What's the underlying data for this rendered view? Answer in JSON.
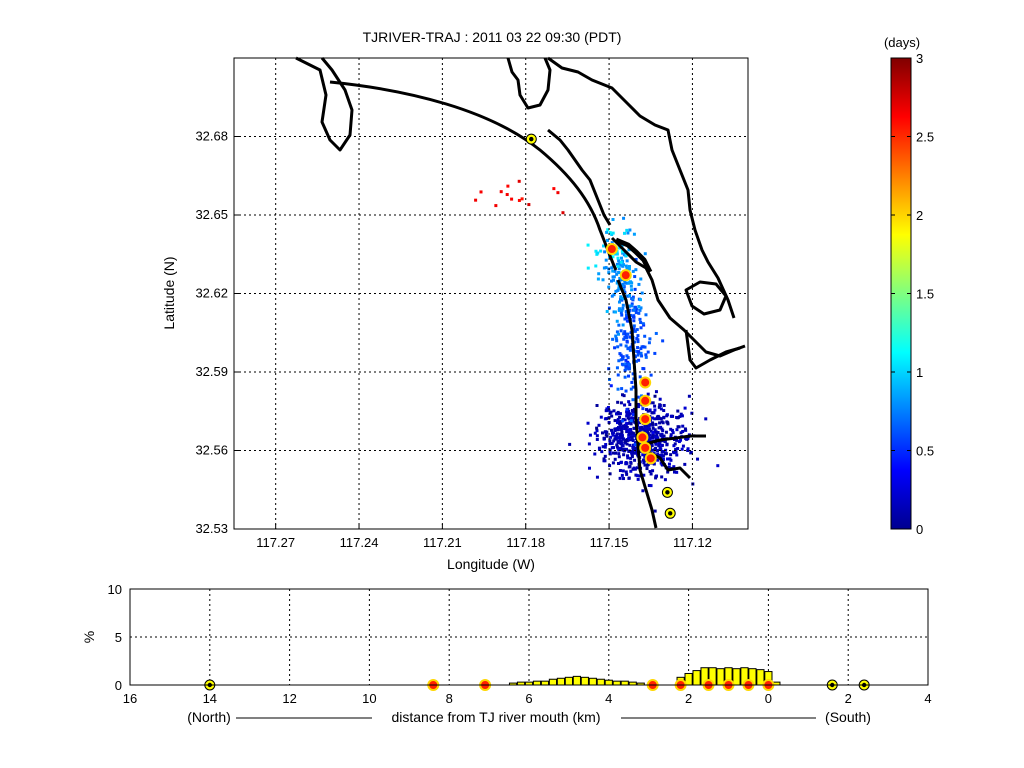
{
  "chart_data": [
    {
      "type": "scatter",
      "title": "TJRIVER-TRAJ : 2011 03 22 09:30 (PDT)",
      "xlabel": "Longitude (W)",
      "ylabel": "Latitude (N)",
      "xlim": [
        117.285,
        117.1
      ],
      "ylim": [
        32.53,
        32.71
      ],
      "x_ticks": [
        "117.27",
        "117.24",
        "117.21",
        "117.18",
        "117.15",
        "117.12"
      ],
      "x_tick_values": [
        117.27,
        117.24,
        117.21,
        117.18,
        117.15,
        117.12
      ],
      "y_ticks": [
        "32.53",
        "32.56",
        "32.59",
        "32.62",
        "32.65",
        "32.68"
      ],
      "y_tick_values": [
        32.53,
        32.56,
        32.59,
        32.62,
        32.65,
        32.68
      ],
      "grid": true,
      "colorbar": {
        "label": "(days)",
        "ticks": [
          "0",
          "0.5",
          "1",
          "1.5",
          "2",
          "2.5",
          "3"
        ],
        "range": [
          0,
          3
        ],
        "colormap": "jet"
      },
      "clusters": [
        {
          "lon": 117.138,
          "lat": 32.565,
          "age": 0.15,
          "spread_lon": 0.008,
          "spread_lat": 0.007,
          "count": 650
        },
        {
          "lon": 117.142,
          "lat": 32.6,
          "age": 0.6,
          "spread_lon": 0.003,
          "spread_lat": 0.012,
          "count": 180
        },
        {
          "lon": 117.146,
          "lat": 32.625,
          "age": 0.8,
          "spread_lon": 0.003,
          "spread_lat": 0.008,
          "count": 120
        },
        {
          "lon": 117.15,
          "lat": 32.637,
          "age": 1.05,
          "spread_lon": 0.004,
          "spread_lat": 0.004,
          "count": 25
        },
        {
          "lon": 117.187,
          "lat": 32.657,
          "age": 2.65,
          "spread_lon": 0.008,
          "spread_lat": 0.004,
          "count": 14
        }
      ],
      "markers_red": [
        {
          "lon": 117.149,
          "lat": 32.637
        },
        {
          "lon": 117.144,
          "lat": 32.627
        },
        {
          "lon": 117.137,
          "lat": 32.586
        },
        {
          "lon": 117.137,
          "lat": 32.579
        },
        {
          "lon": 117.137,
          "lat": 32.572
        },
        {
          "lon": 117.138,
          "lat": 32.565
        },
        {
          "lon": 117.137,
          "lat": 32.561
        },
        {
          "lon": 117.135,
          "lat": 32.557
        }
      ],
      "markers_yellow": [
        {
          "lon": 117.178,
          "lat": 32.679
        },
        {
          "lon": 117.129,
          "lat": 32.544
        },
        {
          "lon": 117.128,
          "lat": 32.536
        }
      ]
    },
    {
      "type": "bar",
      "xlabel": "distance from TJ river mouth (km)",
      "xlabel_left": "(North)",
      "xlabel_right": "(South)",
      "ylabel": "%",
      "xlim": [
        16,
        -4
      ],
      "ylim": [
        0,
        10
      ],
      "x_ticks": [
        "16",
        "14",
        "12",
        "10",
        "8",
        "6",
        "4",
        "2",
        "0",
        "2",
        "4"
      ],
      "x_tick_values": [
        16,
        14,
        12,
        10,
        8,
        6,
        4,
        2,
        0,
        -2,
        -4
      ],
      "y_ticks": [
        "0",
        "5",
        "10"
      ],
      "y_tick_values": [
        0,
        5,
        10
      ],
      "x": [
        6.4,
        6.2,
        6.0,
        5.8,
        5.6,
        5.4,
        5.2,
        5.0,
        4.8,
        4.6,
        4.4,
        4.2,
        4.0,
        3.8,
        3.6,
        3.4,
        3.2,
        2.2,
        2.0,
        1.8,
        1.6,
        1.4,
        1.2,
        1.0,
        0.8,
        0.6,
        0.4,
        0.2,
        0.0,
        -0.2
      ],
      "values": [
        0.2,
        0.3,
        0.3,
        0.4,
        0.4,
        0.6,
        0.7,
        0.8,
        0.9,
        0.8,
        0.7,
        0.6,
        0.5,
        0.4,
        0.4,
        0.3,
        0.2,
        0.8,
        1.2,
        1.5,
        1.8,
        1.8,
        1.7,
        1.8,
        1.7,
        1.8,
        1.7,
        1.6,
        1.4,
        0.3
      ],
      "markers_red": [
        8.4,
        7.1,
        2.9,
        2.2,
        1.5,
        1.0,
        0.5,
        0.0
      ],
      "markers_yellow": [
        14.0,
        -1.6,
        -2.4
      ]
    }
  ]
}
